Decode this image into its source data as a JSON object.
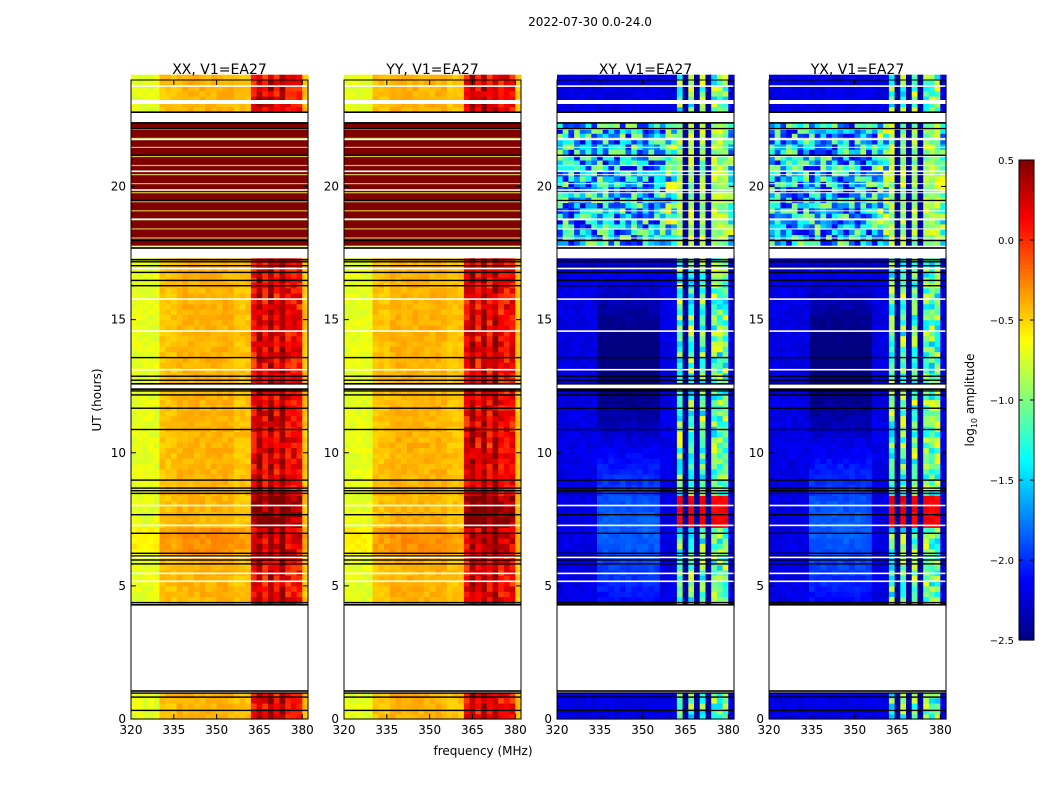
{
  "figure": {
    "suptitle": "2022-07-30 0.0-24.0"
  },
  "chart_data": {
    "type": "heatmap",
    "x_axis": {
      "label": "frequency (MHz)",
      "range": [
        320,
        382
      ],
      "ticks": [
        320,
        335,
        350,
        365,
        380
      ]
    },
    "y_axis": {
      "label": "UT (hours)",
      "range": [
        0,
        24
      ],
      "ticks": [
        0,
        5,
        10,
        15,
        20
      ]
    },
    "colorbar": {
      "label": "log10 amplitude",
      "range": [
        -2.5,
        0.5
      ],
      "ticks": [
        "0.5",
        "0.0",
        "−0.5",
        "−1.0",
        "−1.5",
        "−2.0",
        "−2.5"
      ],
      "colormap": "jet"
    },
    "panels": [
      {
        "title": "XX, V1=EA27",
        "base_level": -0.45,
        "band_level": 0.1,
        "storm_level": 0.5
      },
      {
        "title": "YY, V1=EA27",
        "base_level": -0.45,
        "band_level": 0.1,
        "storm_level": 0.5
      },
      {
        "title": "XY, V1=EA27",
        "base_level": -2.2,
        "band_level": -1.1,
        "storm_level": -1.4
      },
      {
        "title": "YX, V1=EA27",
        "base_level": -2.2,
        "band_level": -1.1,
        "storm_level": -1.4
      }
    ],
    "rfi_band_MHz": [
      363,
      380
    ],
    "flagged_UT_hours": [
      [
        1.1,
        4.3
      ],
      [
        12.4,
        12.6
      ],
      [
        17.3,
        17.7
      ],
      [
        22.4,
        22.8
      ],
      [
        8.5,
        8.8
      ]
    ]
  }
}
